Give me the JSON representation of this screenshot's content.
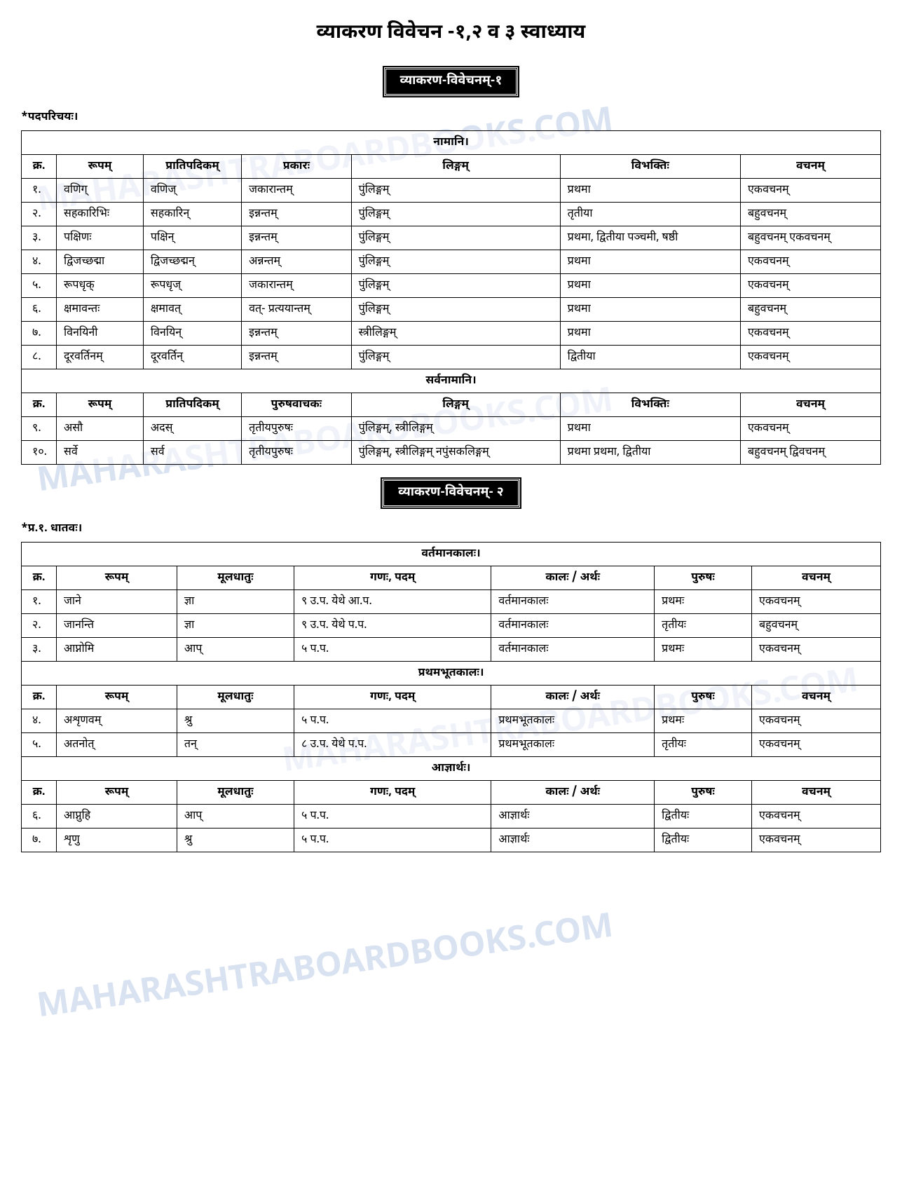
{
  "title": "व्याकरण विवेचन -१,२ व ३ स्वाध्याय",
  "watermark": "MAHARASHTRABOARDBOOKS.COM",
  "section1": {
    "label": "व्याकरण-विवेचनम्-१",
    "subhead": "*पदपरिचयः।",
    "table_title1": "नामानि।",
    "headers1": [
      "क्र.",
      "रूपम्",
      "प्रातिपदिकम्",
      "प्रकारः",
      "लिङ्गम्",
      "विभक्तिः",
      "वचनम्"
    ],
    "rows1": [
      [
        "१.",
        "वणिग्",
        "वणिज्",
        "जकारान्तम्",
        "पुंलिङ्गम्",
        "प्रथमा",
        "एकवचनम्"
      ],
      [
        "२.",
        "सहकारिभिः",
        "सहकारिन्",
        "इन्नन्तम्",
        "पुंलिङ्गम्",
        "तृतीया",
        "बहुवचनम्"
      ],
      [
        "३.",
        "पक्षिणः",
        "पक्षिन्",
        "इन्नन्तम्",
        "पुंलिङ्गम्",
        "प्रथमा, द्वितीया पञ्चमी, षष्ठी",
        "बहुवचनम् एकवचनम्"
      ],
      [
        "४.",
        "द्विजच्छद्मा",
        "द्विजच्छद्मन्",
        "अन्नन्तम्",
        "पुंलिङ्गम्",
        "प्रथमा",
        "एकवचनम्"
      ],
      [
        "५.",
        "रूपधृक्",
        "रूपधृज्",
        "जकारान्तम्",
        "पुंलिङ्गम्",
        "प्रथमा",
        "एकवचनम्"
      ],
      [
        "६.",
        "क्षमावन्तः",
        "क्षमावत्",
        "वत्- प्रत्ययान्तम्",
        "पुंलिङ्गम्",
        "प्रथमा",
        "बहुवचनम्"
      ],
      [
        "७.",
        "विनयिनी",
        "विनयिन्",
        "इन्नन्तम्",
        "स्त्रीलिङ्गम्",
        "प्रथमा",
        "एकवचनम्"
      ],
      [
        "८.",
        "दूरवर्तिनम्",
        "दूरवर्तिन्",
        "इन्नन्तम्",
        "पुंलिङ्गम्",
        "द्वितीया",
        "एकवचनम्"
      ]
    ],
    "table_title2": "सर्वनामानि।",
    "headers2": [
      "क्र.",
      "रूपम्",
      "प्रातिपदिकम्",
      "पुरुषवाचकः",
      "लिङ्गम्",
      "विभक्तिः",
      "वचनम्"
    ],
    "rows2": [
      [
        "९.",
        "असौ",
        "अदस्",
        "तृतीयपुरुषः",
        "पुंलिङ्गम्, स्त्रीलिङ्गम्",
        "प्रथमा",
        "एकवचनम्"
      ],
      [
        "१०.",
        "सर्वे",
        "सर्व",
        "तृतीयपुरुषः",
        "पुंलिङ्गम्, स्त्रीलिङ्गम् नपुंसकलिङ्गम्",
        "प्रथमा प्रथमा, द्वितीया",
        "बहुवचनम् द्विवचनम्"
      ]
    ]
  },
  "section2": {
    "label": "व्याकरण-विवेचनम्- २",
    "subhead": "*प्र.१. धातवः।",
    "table_title1": "वर्तमानकालः।",
    "headers": [
      "क्र.",
      "रूपम्",
      "मूलधातुः",
      "गणः, पदम्",
      "कालः / अर्थः",
      "पुरुषः",
      "वचनम्"
    ],
    "rows1": [
      [
        "१.",
        "जाने",
        "ज्ञा",
        "९ उ.प. येथे आ.प.",
        "वर्तमानकालः",
        "प्रथमः",
        "एकवचनम्"
      ],
      [
        "२.",
        "जानन्ति",
        "ज्ञा",
        "९ उ.प. येथे प.प.",
        "वर्तमानकालः",
        "तृतीयः",
        "बहुवचनम्"
      ],
      [
        "३.",
        "आप्नोमि",
        "आप्",
        "५ प.प.",
        "वर्तमानकालः",
        "प्रथमः",
        "एकवचनम्"
      ]
    ],
    "table_title2": "प्रथमभूतकालः।",
    "rows2": [
      [
        "४.",
        "अशृणवम्",
        "श्रु",
        "५ प.प.",
        "प्रथमभूतकालः",
        "प्रथमः",
        "एकवचनम्"
      ],
      [
        "५.",
        "अतनोत्",
        "तन्",
        "८ उ.प. येथे प.प.",
        "प्रथमभूतकालः",
        "तृतीयः",
        "एकवचनम्"
      ]
    ],
    "table_title3": "आज्ञार्थः।",
    "rows3": [
      [
        "६.",
        "आप्नुहि",
        "आप्",
        "५ प.प.",
        "आज्ञार्थः",
        "द्वितीयः",
        "एकवचनम्"
      ],
      [
        "७.",
        "शृणु",
        "श्रु",
        "५ प.प.",
        "आज्ञार्थः",
        "द्वितीयः",
        "एकवचनम्"
      ]
    ]
  }
}
